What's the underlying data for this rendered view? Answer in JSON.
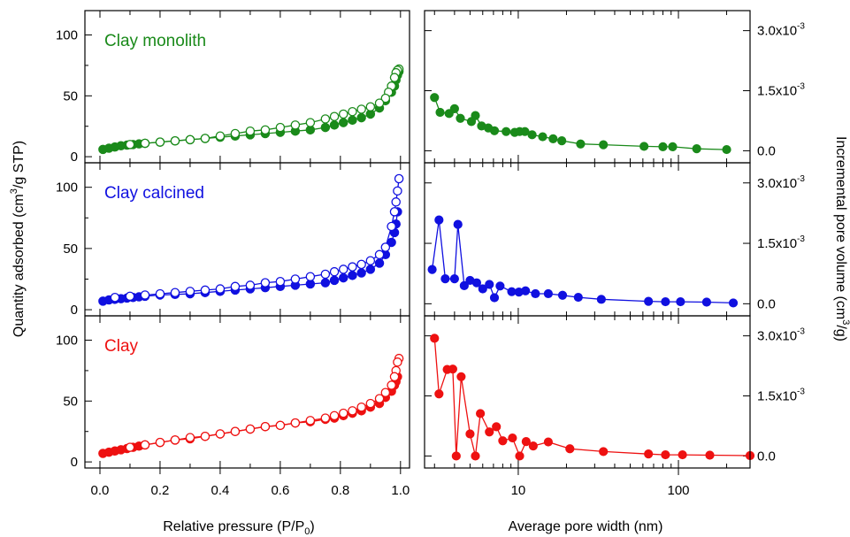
{
  "labels": {
    "x_left": "Relative pressure (P/P",
    "x_left_sub": "0",
    "x_left_end": ")",
    "x_right": "Average pore width (nm)",
    "y_left_pre": "Quantity adsorbed (cm",
    "y_left_sup": "3",
    "y_left_post": "/g STP)",
    "y_right_pre": "Incremental pore volume (cm",
    "y_right_sup": "3",
    "y_right_post": "/g)"
  },
  "ticks": {
    "left_x": [
      "0.0",
      "0.2",
      "0.4",
      "0.6",
      "0.8",
      "1.0"
    ],
    "left_y": [
      "0",
      "50",
      "100"
    ],
    "right_x": [
      "10",
      "100"
    ],
    "right_y": [
      "0.0",
      "1.5x10",
      "3.0x10"
    ],
    "right_y_exp": "-3"
  },
  "chart_data": [
    {
      "type": "scatter",
      "panel": "isotherm",
      "title": "Clay monolith",
      "color": "#1a8a1a",
      "xlim": [
        -0.05,
        1.03
      ],
      "ylim": [
        -5,
        120
      ],
      "series": [
        {
          "name": "adsorption",
          "marker": "filled",
          "x": [
            0.01,
            0.03,
            0.05,
            0.07,
            0.09,
            0.11,
            0.13,
            0.15,
            0.2,
            0.25,
            0.3,
            0.35,
            0.4,
            0.45,
            0.5,
            0.55,
            0.6,
            0.65,
            0.7,
            0.75,
            0.78,
            0.81,
            0.84,
            0.87,
            0.9,
            0.93,
            0.95,
            0.97,
            0.98,
            0.985,
            0.99,
            0.995
          ],
          "y": [
            6,
            7,
            8,
            9,
            9.5,
            10,
            10.5,
            11,
            12,
            13,
            14,
            15,
            16,
            17,
            18,
            19,
            20,
            21,
            22,
            24,
            26,
            28,
            30,
            32,
            35,
            40,
            46,
            53,
            58,
            63,
            67,
            70
          ]
        },
        {
          "name": "desorption",
          "marker": "open",
          "x": [
            0.995,
            0.99,
            0.985,
            0.98,
            0.97,
            0.96,
            0.95,
            0.93,
            0.9,
            0.87,
            0.84,
            0.81,
            0.78,
            0.75,
            0.7,
            0.65,
            0.6,
            0.55,
            0.5,
            0.45,
            0.4,
            0.35,
            0.3,
            0.25,
            0.2,
            0.15,
            0.1
          ],
          "y": [
            72,
            71,
            69,
            65,
            58,
            53,
            48,
            44,
            41,
            39,
            37,
            35,
            33,
            31,
            28,
            26,
            24,
            22,
            21,
            19,
            17,
            15,
            14,
            13,
            12,
            11,
            10
          ]
        }
      ]
    },
    {
      "type": "scatter",
      "panel": "isotherm",
      "title": "Clay calcined",
      "color": "#1010e0",
      "xlim": [
        -0.05,
        1.03
      ],
      "ylim": [
        -5,
        120
      ],
      "series": [
        {
          "name": "adsorption",
          "marker": "filled",
          "x": [
            0.01,
            0.03,
            0.05,
            0.07,
            0.09,
            0.11,
            0.13,
            0.15,
            0.2,
            0.25,
            0.3,
            0.35,
            0.4,
            0.45,
            0.5,
            0.55,
            0.6,
            0.65,
            0.7,
            0.75,
            0.78,
            0.81,
            0.84,
            0.87,
            0.9,
            0.93,
            0.95,
            0.97,
            0.98,
            0.985,
            0.99
          ],
          "y": [
            7,
            8,
            8.5,
            9,
            9.5,
            10,
            10.5,
            11,
            12,
            12.5,
            13,
            14,
            15,
            16,
            17,
            18,
            19,
            20,
            21,
            22,
            24,
            26,
            28,
            30,
            33,
            38,
            45,
            55,
            63,
            70,
            80
          ]
        },
        {
          "name": "desorption",
          "marker": "open",
          "x": [
            0.995,
            0.99,
            0.985,
            0.98,
            0.97,
            0.95,
            0.93,
            0.9,
            0.87,
            0.84,
            0.81,
            0.78,
            0.75,
            0.7,
            0.65,
            0.6,
            0.55,
            0.5,
            0.45,
            0.4,
            0.35,
            0.3,
            0.25,
            0.2,
            0.15,
            0.1,
            0.05
          ],
          "y": [
            107,
            97,
            88,
            80,
            68,
            51,
            45,
            40,
            37,
            35,
            33,
            31,
            29,
            27,
            25,
            23,
            22,
            20,
            19,
            17,
            16,
            15,
            14,
            13,
            12,
            11,
            10
          ]
        }
      ]
    },
    {
      "type": "scatter",
      "panel": "isotherm",
      "title": "Clay",
      "color": "#ee1111",
      "xlim": [
        -0.05,
        1.03
      ],
      "ylim": [
        -5,
        120
      ],
      "series": [
        {
          "name": "adsorption",
          "marker": "filled",
          "x": [
            0.01,
            0.03,
            0.05,
            0.07,
            0.09,
            0.11,
            0.13,
            0.15,
            0.2,
            0.25,
            0.3,
            0.35,
            0.4,
            0.45,
            0.5,
            0.55,
            0.6,
            0.65,
            0.7,
            0.75,
            0.78,
            0.81,
            0.84,
            0.87,
            0.9,
            0.93,
            0.95,
            0.97,
            0.98,
            0.985,
            0.99
          ],
          "y": [
            7,
            8,
            9,
            10,
            11,
            12,
            13,
            14,
            16,
            18,
            19,
            21,
            23,
            25,
            27,
            29,
            30,
            32,
            33,
            35,
            36,
            38,
            40,
            42,
            45,
            48,
            53,
            58,
            63,
            66,
            70
          ]
        },
        {
          "name": "desorption",
          "marker": "open",
          "x": [
            0.995,
            0.99,
            0.985,
            0.98,
            0.97,
            0.95,
            0.93,
            0.9,
            0.87,
            0.84,
            0.81,
            0.78,
            0.75,
            0.7,
            0.65,
            0.6,
            0.55,
            0.5,
            0.45,
            0.4,
            0.35,
            0.3,
            0.25,
            0.2,
            0.15,
            0.1
          ],
          "y": [
            85,
            82,
            75,
            70,
            63,
            57,
            52,
            48,
            45,
            42,
            40,
            38,
            36,
            34,
            32,
            30,
            29,
            27,
            25,
            23,
            21,
            20,
            18,
            16,
            14,
            12
          ]
        }
      ]
    },
    {
      "type": "line",
      "panel": "pore",
      "color": "#1a8a1a",
      "xscale": "log",
      "xlim": [
        2.6,
        280
      ],
      "ylim": [
        -0.0003,
        0.0035
      ],
      "series": [
        {
          "name": "pore_volume",
          "x": [
            3.0,
            3.25,
            3.7,
            4.0,
            4.35,
            5.1,
            5.4,
            5.9,
            6.5,
            7.1,
            8.4,
            9.5,
            10.2,
            11.0,
            12.2,
            14.2,
            16.5,
            18.7,
            24.5,
            34,
            61,
            80,
            92,
            130,
            200
          ],
          "y": [
            0.00133,
            0.00096,
            0.00093,
            0.00105,
            0.00081,
            0.00073,
            0.00088,
            0.00062,
            0.00057,
            0.0005,
            0.00048,
            0.00046,
            0.00048,
            0.00048,
            0.0004,
            0.00035,
            0.0003,
            0.00025,
            0.00017,
            0.00015,
            0.00011,
            0.0001,
            0.0001,
            5e-05,
            3e-05
          ]
        }
      ]
    },
    {
      "type": "line",
      "panel": "pore",
      "color": "#1010e0",
      "xscale": "log",
      "xlim": [
        2.6,
        280
      ],
      "ylim": [
        -0.0003,
        0.0035
      ],
      "series": [
        {
          "name": "pore_volume",
          "x": [
            2.9,
            3.2,
            3.5,
            4.0,
            4.2,
            4.6,
            5.0,
            5.5,
            6.0,
            6.6,
            7.1,
            7.7,
            9.1,
            10.1,
            11.1,
            12.8,
            15.4,
            18.9,
            23.7,
            33,
            65,
            83,
            103,
            150,
            220
          ],
          "y": [
            0.00085,
            0.00208,
            0.00062,
            0.00062,
            0.00197,
            0.00045,
            0.00058,
            0.00052,
            0.00037,
            0.00048,
            0.00015,
            0.00044,
            0.0003,
            0.00029,
            0.00032,
            0.00025,
            0.00025,
            0.00021,
            0.00016,
            0.00011,
            6e-05,
            5e-05,
            5e-05,
            4e-05,
            2e-05
          ]
        }
      ]
    },
    {
      "type": "line",
      "panel": "pore",
      "color": "#ee1111",
      "xscale": "log",
      "xlim": [
        2.6,
        280
      ],
      "ylim": [
        -0.0003,
        0.0035
      ],
      "series": [
        {
          "name": "pore_volume",
          "x": [
            3.0,
            3.2,
            3.6,
            3.9,
            4.1,
            4.4,
            5.0,
            5.4,
            5.8,
            6.6,
            7.3,
            8.0,
            9.2,
            10.2,
            11.2,
            12.4,
            15.4,
            21,
            34,
            65,
            83,
            106,
            157,
            280
          ],
          "y": [
            0.00294,
            0.00155,
            0.00216,
            0.00217,
            0.0,
            0.00198,
            0.00055,
            0.0,
            0.00106,
            0.0006,
            0.00073,
            0.00038,
            0.00045,
            0.0,
            0.00036,
            0.00025,
            0.00035,
            0.00018,
            0.00011,
            5e-05,
            3e-05,
            3e-05,
            2e-05,
            1e-05
          ]
        }
      ]
    }
  ]
}
